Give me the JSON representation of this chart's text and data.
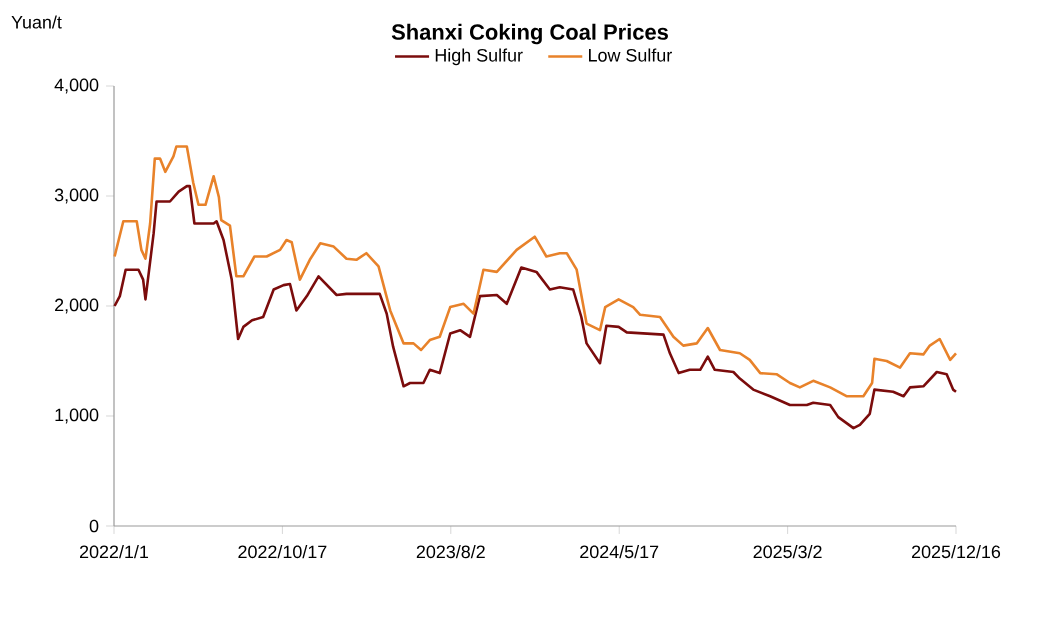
{
  "chart_data": {
    "type": "line",
    "title": "Shanxi Coking Coal Prices",
    "ylabel": "Yuan/t",
    "legend": "top",
    "grid": false,
    "marker": "none",
    "line_style": "solid",
    "xlim": [
      "2022-01-01",
      "2025-12-16"
    ],
    "xticks": [
      {
        "value": "2022-01-01",
        "label": "2022/1/1"
      },
      {
        "value": "2022-10-17",
        "label": "2022/10/17"
      },
      {
        "value": "2023-08-02",
        "label": "2023/8/2"
      },
      {
        "value": "2024-05-17",
        "label": "2024/5/17"
      },
      {
        "value": "2025-03-02",
        "label": "2025/3/2"
      },
      {
        "value": "2025-12-16",
        "label": "2025/12/16"
      }
    ],
    "ylim": [
      0,
      4000
    ],
    "yticks": [
      0,
      {
        "value": 1000,
        "label": "1,000"
      },
      {
        "value": 2000,
        "label": "2,000"
      },
      {
        "value": 3000,
        "label": "3,000"
      },
      {
        "value": 4000,
        "label": "4,000"
      }
    ],
    "series": [
      {
        "name": "High Sulfur",
        "color": "#7b0c0c",
        "x": [
          "2022-01-02",
          "2022-01-11",
          "2022-01-21",
          "2022-02-12",
          "2022-02-20",
          "2022-02-24",
          "2022-03-10",
          "2022-03-15",
          "2022-04-07",
          "2022-04-22",
          "2022-05-06",
          "2022-05-11",
          "2022-05-19",
          "2022-06-21",
          "2022-06-26",
          "2022-07-08",
          "2022-07-22",
          "2022-08-02",
          "2022-08-11",
          "2022-08-26",
          "2022-09-14",
          "2022-10-02",
          "2022-10-19",
          "2022-10-30",
          "2022-11-10",
          "2022-11-28",
          "2022-12-18",
          "2023-01-18",
          "2023-02-04",
          "2023-04-02",
          "2023-04-14",
          "2023-04-25",
          "2023-05-13",
          "2023-05-24",
          "2023-06-16",
          "2023-06-27",
          "2023-07-14",
          "2023-08-01",
          "2023-08-18",
          "2023-09-04",
          "2023-09-21",
          "2023-10-20",
          "2023-11-06",
          "2023-12-01",
          "2023-12-27",
          "2024-01-19",
          "2024-02-05",
          "2024-02-28",
          "2024-03-13",
          "2024-03-22",
          "2024-04-14",
          "2024-04-25",
          "2024-05-16",
          "2024-05-30",
          "2024-08-01",
          "2024-08-12",
          "2024-08-27",
          "2024-09-15",
          "2024-10-03",
          "2024-10-16",
          "2024-10-28",
          "2024-11-29",
          "2024-12-10",
          "2025-01-02",
          "2025-01-31",
          "2025-03-06",
          "2025-04-04",
          "2025-04-15",
          "2025-05-14",
          "2025-05-28",
          "2025-06-23",
          "2025-07-04",
          "2025-07-21",
          "2025-07-29",
          "2025-08-30",
          "2025-09-17",
          "2025-09-28",
          "2025-10-21",
          "2025-11-13",
          "2025-11-30",
          "2025-12-11",
          "2025-12-16"
        ],
        "values": [
          2000,
          2090,
          2330,
          2330,
          2240,
          2060,
          2660,
          2950,
          2950,
          3040,
          3090,
          3090,
          2750,
          2750,
          2770,
          2600,
          2240,
          1700,
          1810,
          1870,
          1900,
          2150,
          2190,
          2200,
          1960,
          2090,
          2270,
          2100,
          2110,
          2110,
          1930,
          1630,
          1270,
          1300,
          1300,
          1420,
          1390,
          1750,
          1780,
          1720,
          2090,
          2100,
          2020,
          2350,
          2310,
          2150,
          2170,
          2150,
          1900,
          1660,
          1480,
          1820,
          1810,
          1760,
          1740,
          1570,
          1390,
          1420,
          1420,
          1540,
          1420,
          1400,
          1340,
          1240,
          1180,
          1100,
          1100,
          1120,
          1100,
          990,
          890,
          920,
          1020,
          1240,
          1220,
          1180,
          1260,
          1270,
          1400,
          1380,
          1240,
          1220
        ]
      },
      {
        "name": "Low Sulfur",
        "color": "#e8822a",
        "x": [
          "2022-01-02",
          "2022-01-17",
          "2022-02-09",
          "2022-02-17",
          "2022-02-24",
          "2022-03-04",
          "2022-03-12",
          "2022-03-21",
          "2022-03-30",
          "2022-04-13",
          "2022-04-18",
          "2022-05-06",
          "2022-05-17",
          "2022-05-26",
          "2022-06-07",
          "2022-06-21",
          "2022-06-30",
          "2022-07-04",
          "2022-07-19",
          "2022-07-30",
          "2022-08-11",
          "2022-08-30",
          "2022-09-20",
          "2022-10-13",
          "2022-10-24",
          "2022-11-02",
          "2022-11-16",
          "2022-12-03",
          "2022-12-21",
          "2023-01-13",
          "2023-02-04",
          "2023-02-21",
          "2023-03-10",
          "2023-03-31",
          "2023-04-20",
          "2023-05-13",
          "2023-05-30",
          "2023-06-12",
          "2023-06-27",
          "2023-07-14",
          "2023-08-01",
          "2023-08-24",
          "2023-09-10",
          "2023-09-27",
          "2023-10-20",
          "2023-11-23",
          "2023-12-24",
          "2024-01-13",
          "2024-02-05",
          "2024-02-17",
          "2024-03-05",
          "2024-03-22",
          "2024-04-14",
          "2024-04-23",
          "2024-05-16",
          "2024-06-10",
          "2024-06-22",
          "2024-07-26",
          "2024-08-18",
          "2024-09-04",
          "2024-09-27",
          "2024-10-16",
          "2024-11-06",
          "2024-12-10",
          "2024-12-27",
          "2025-01-14",
          "2025-02-11",
          "2025-03-06",
          "2025-03-23",
          "2025-04-15",
          "2025-05-14",
          "2025-06-11",
          "2025-07-10",
          "2025-07-25",
          "2025-07-29",
          "2025-08-19",
          "2025-09-11",
          "2025-09-28",
          "2025-10-21",
          "2025-11-01",
          "2025-11-18",
          "2025-12-06",
          "2025-12-16"
        ],
        "values": [
          2450,
          2770,
          2770,
          2510,
          2430,
          2750,
          3340,
          3340,
          3220,
          3360,
          3450,
          3450,
          3120,
          2920,
          2920,
          3180,
          2990,
          2780,
          2730,
          2270,
          2270,
          2450,
          2450,
          2510,
          2600,
          2580,
          2240,
          2420,
          2570,
          2540,
          2430,
          2420,
          2480,
          2360,
          1960,
          1660,
          1660,
          1600,
          1690,
          1720,
          1990,
          2020,
          1930,
          2330,
          2310,
          2510,
          2630,
          2450,
          2480,
          2480,
          2330,
          1840,
          1780,
          1990,
          2060,
          1990,
          1920,
          1900,
          1720,
          1640,
          1660,
          1800,
          1600,
          1570,
          1510,
          1390,
          1380,
          1300,
          1260,
          1320,
          1260,
          1180,
          1180,
          1300,
          1520,
          1500,
          1440,
          1570,
          1560,
          1640,
          1700,
          1510,
          1570
        ]
      }
    ]
  }
}
